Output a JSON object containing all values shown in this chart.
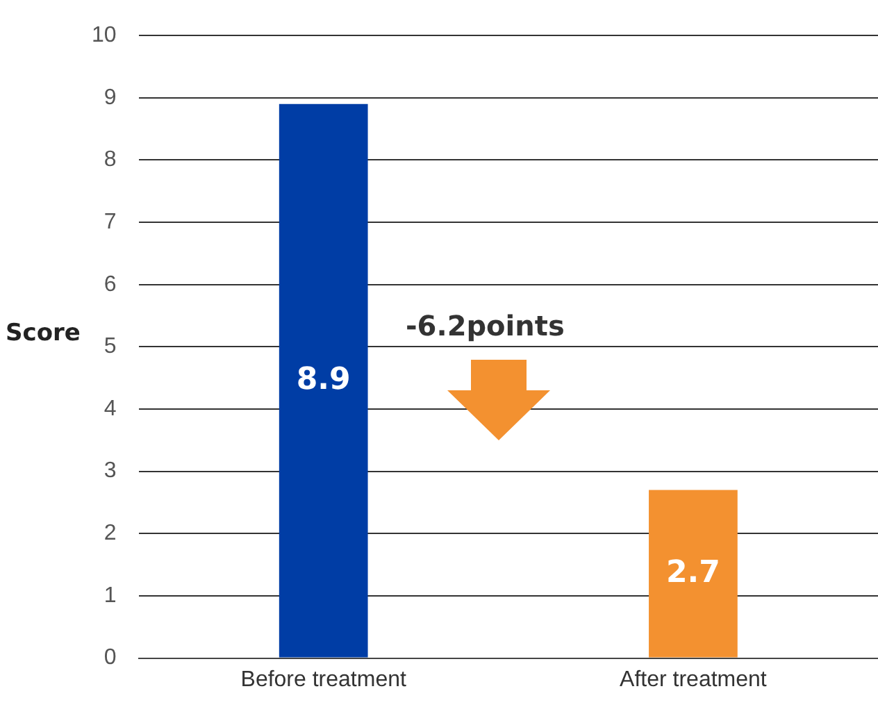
{
  "chart_data": {
    "type": "bar",
    "ylabel": "Score",
    "categories": [
      "Before treatment",
      "After treatment"
    ],
    "values": [
      8.9,
      2.7
    ],
    "colors": [
      "#003da5",
      "#f39130"
    ],
    "ylim": [
      0,
      10
    ],
    "yticks": [
      0,
      1,
      2,
      3,
      4,
      5,
      6,
      7,
      8,
      9,
      10
    ],
    "grid": "y",
    "data_labels": true,
    "annotations": [
      "-6.2points"
    ]
  }
}
